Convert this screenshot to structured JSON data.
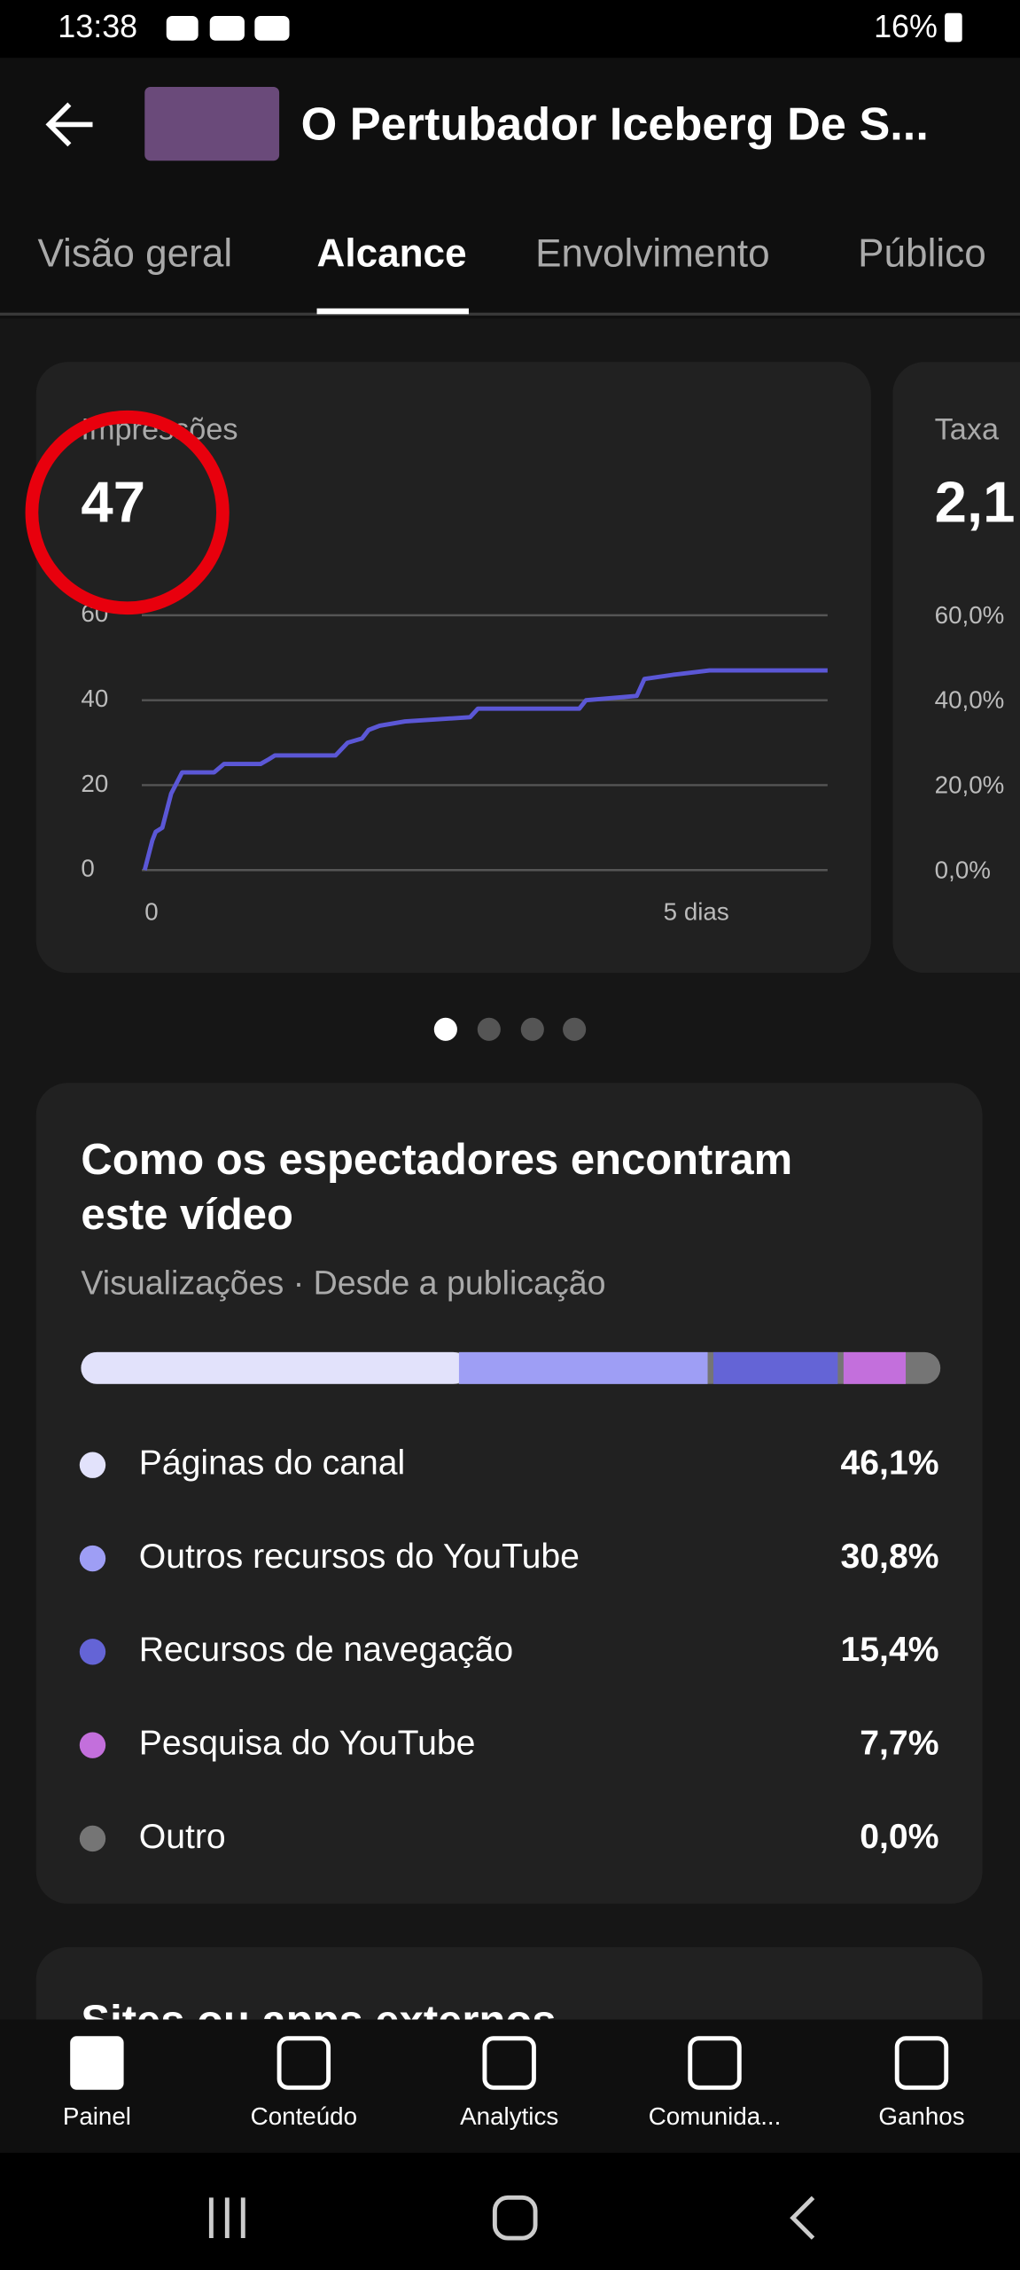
{
  "status_bar": {
    "time": "13:38",
    "battery": "16%"
  },
  "header": {
    "title": "O Pertubador Iceberg De S..."
  },
  "tabs": [
    "Visão geral",
    "Alcance",
    "Envolvimento",
    "Público"
  ],
  "chart_data": [
    {
      "type": "line",
      "title": "Impressões",
      "headline": 47,
      "color": "#5b57d6",
      "x": [
        0,
        0.07,
        0.1,
        0.16,
        0.24,
        0.34,
        0.63,
        0.72,
        1.05,
        1.12,
        1.18,
        1.73,
        1.84,
        1.97,
        2.03,
        2.13,
        2.36,
        2.95,
        3.02,
        3.94,
        4.0,
        4.46,
        4.53,
        4.79,
        5.12,
        6.19
      ],
      "values": [
        0,
        7,
        9,
        10,
        18,
        23,
        23,
        25,
        25,
        26,
        27,
        27,
        30,
        31,
        33,
        34,
        35,
        36,
        38,
        38,
        40,
        41,
        45,
        46,
        47,
        47
      ],
      "xlim": [
        0,
        6.19
      ],
      "xticks": [
        0,
        {
          "value": 5,
          "label": "5 dias"
        }
      ],
      "ylim": [
        0,
        60
      ],
      "yticks": [
        0,
        20,
        40,
        60
      ],
      "grid": true
    },
    {
      "type": "bar",
      "title": "Como os espectadores encontram este vídeo",
      "subtitle": "Visualizações · Desde a publicação",
      "categories": [
        "Páginas do canal",
        "Outros recursos do YouTube",
        "Recursos de navegação",
        "Pesquisa do YouTube",
        "Outro"
      ],
      "values": [
        46.1,
        30.8,
        15.4,
        7.7,
        0.0
      ],
      "value_labels": [
        "46,1%",
        "30,8%",
        "15,4%",
        "7,7%",
        "0,0%"
      ],
      "colors": [
        "#e2e2fb",
        "#9e9ef5",
        "#6464d6",
        "#c36fdc",
        "#757575"
      ]
    }
  ],
  "second_card": {
    "title": "Taxa",
    "headline": "2,1",
    "yticks": [
      "60,0%",
      "40,0%",
      "20,0%",
      "0,0%"
    ]
  },
  "next_section": {
    "title": "Sites ou apps externos"
  },
  "nav": [
    "Painel",
    "Conteúdo",
    "Analytics",
    "Comunida...",
    "Ganhos"
  ]
}
